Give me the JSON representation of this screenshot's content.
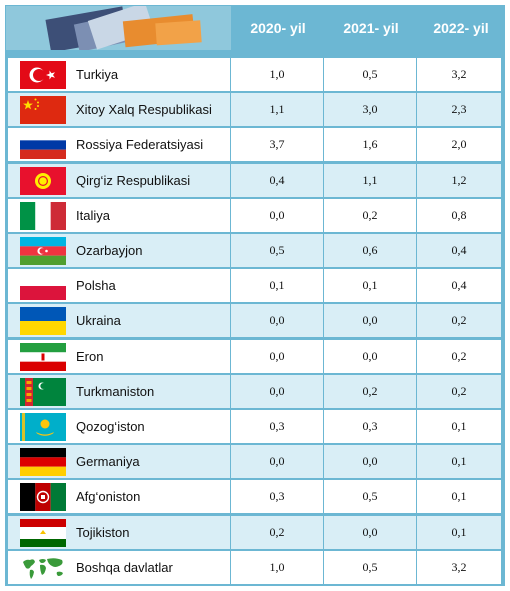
{
  "header": {
    "columns": [
      "2020- yil",
      "2021- yil",
      "2022- yil"
    ]
  },
  "rows": [
    {
      "country": "Turkiya",
      "flag": "turkey-flag-icon",
      "v2020": "1,0",
      "v2021": "0,5",
      "v2022": "3,2"
    },
    {
      "country": "Xitoy Xalq Respublikasi",
      "flag": "china-flag-icon",
      "v2020": "1,1",
      "v2021": "3,0",
      "v2022": "2,3"
    },
    {
      "country": "Rossiya Federatsiyasi",
      "flag": "russia-flag-icon",
      "v2020": "3,7",
      "v2021": "1,6",
      "v2022": "2,0"
    },
    {
      "country": "Qirg‘iz Respublikasi",
      "flag": "kyrgyzstan-flag-icon",
      "v2020": "0,4",
      "v2021": "1,1",
      "v2022": "1,2"
    },
    {
      "country": "Italiya",
      "flag": "italy-flag-icon",
      "v2020": "0,0",
      "v2021": "0,2",
      "v2022": "0,8"
    },
    {
      "country": "Ozarbayjon",
      "flag": "azerbaijan-flag-icon",
      "v2020": "0,5",
      "v2021": "0,6",
      "v2022": "0,4"
    },
    {
      "country": "Polsha",
      "flag": "poland-flag-icon",
      "v2020": "0,1",
      "v2021": "0,1",
      "v2022": "0,4"
    },
    {
      "country": "Ukraina",
      "flag": "ukraine-flag-icon",
      "v2020": "0,0",
      "v2021": "0,0",
      "v2022": "0,2"
    },
    {
      "country": "Eron",
      "flag": "iran-flag-icon",
      "v2020": "0,0",
      "v2021": "0,0",
      "v2022": "0,2"
    },
    {
      "country": "Turkmaniston",
      "flag": "turkmenistan-flag-icon",
      "v2020": "0,0",
      "v2021": "0,2",
      "v2022": "0,2"
    },
    {
      "country": "Qozog‘iston",
      "flag": "kazakhstan-flag-icon",
      "v2020": "0,3",
      "v2021": "0,3",
      "v2022": "0,1"
    },
    {
      "country": "Germaniya",
      "flag": "germany-flag-icon",
      "v2020": "0,0",
      "v2021": "0,0",
      "v2022": "0,1"
    },
    {
      "country": "Afg‘oniston",
      "flag": "afghanistan-flag-icon",
      "v2020": "0,3",
      "v2021": "0,5",
      "v2022": "0,1"
    },
    {
      "country": "Tojikiston",
      "flag": "tajikistan-flag-icon",
      "v2020": "0,2",
      "v2021": "0,0",
      "v2022": "0,1"
    },
    {
      "country": "Boshqa davlatlar",
      "flag": "world-map-icon",
      "v2020": "1,0",
      "v2021": "0,5",
      "v2022": "3,2"
    }
  ],
  "colors": {
    "header_bg": "#6cb7d3",
    "row_alt": "#d9eef6",
    "header_text": "#ffffff"
  }
}
